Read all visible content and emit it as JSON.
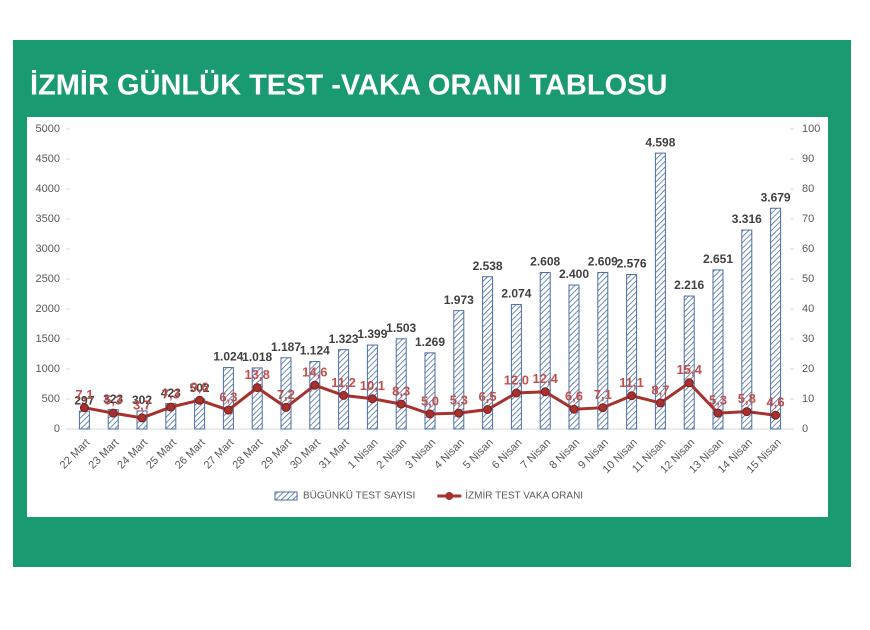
{
  "chart_data": {
    "type": "bar-line",
    "title": "İZMİR GÜNLÜK TEST -VAKA ORANI TABLOSU",
    "categories": [
      "22 Mart",
      "23 Mart",
      "24 Mart",
      "25 Mart",
      "26 Mart",
      "27 Mart",
      "28 Mart",
      "29 Mart",
      "30 Mart",
      "31 Mart",
      "1 Nisan",
      "2 Nisan",
      "3 Nisan",
      "4 Nisan",
      "5 Nisan",
      "6 Nisan",
      "7 Nisan",
      "8 Nisan",
      "9 Nisan",
      "10 Nisan",
      "11 Nisan",
      "12 Nisan",
      "13 Nisan",
      "14 Nisan",
      "15 Nisan"
    ],
    "series": [
      {
        "name": "BÜGÜNKÜ TEST SAYISI",
        "type": "bar",
        "color": "#4a6fa5",
        "values": [
          297,
          323,
          302,
          423,
          502,
          1024,
          1018,
          1187,
          1124,
          1323,
          1399,
          1503,
          1269,
          1973,
          2538,
          2074,
          2608,
          2400,
          2609,
          2576,
          4598,
          2216,
          2651,
          3316,
          3679
        ],
        "value_labels": [
          "297",
          "323",
          "302",
          "423",
          "502",
          "1.024",
          "1.018",
          "1.187",
          "1.124",
          "1.323",
          "1.399",
          "1.503",
          "1.269",
          "1.973",
          "2.538",
          "2.074",
          "2.608",
          "2.400",
          "2.609",
          "2.576",
          "4.598",
          "2.216",
          "2.651",
          "3.316",
          "3.679"
        ]
      },
      {
        "name": "İZMİR TEST VAKA ORANI",
        "type": "line",
        "axis": "y2",
        "color": "#a5322e",
        "values": [
          7.1,
          5.3,
          3.7,
          7.3,
          9.6,
          6.3,
          13.8,
          7.2,
          14.6,
          11.2,
          10.1,
          8.3,
          5.0,
          5.3,
          6.5,
          12.0,
          12.4,
          6.6,
          7.1,
          11.1,
          8.7,
          15.4,
          5.3,
          5.8,
          4.6
        ],
        "value_labels": [
          "7,1",
          "5,3",
          "3,7",
          "7,3",
          "9,6",
          "6,3",
          "13,8",
          "7,2",
          "14,6",
          "11,2",
          "10,1",
          "8,3",
          "5,0",
          "5,3",
          "6,5",
          "12,0",
          "12,4",
          "6,6",
          "7,1",
          "11,1",
          "8,7",
          "15,4",
          "5,3",
          "5,8",
          "4,6"
        ]
      }
    ],
    "ylim": [
      0,
      5000
    ],
    "yticks": [
      0,
      500,
      1000,
      1500,
      2000,
      2500,
      3000,
      3500,
      4000,
      4500,
      5000
    ],
    "y2lim": [
      0,
      100
    ],
    "y2ticks": [
      0,
      10,
      20,
      30,
      40,
      50,
      60,
      70,
      80,
      90,
      100
    ],
    "legend": "bottom"
  }
}
